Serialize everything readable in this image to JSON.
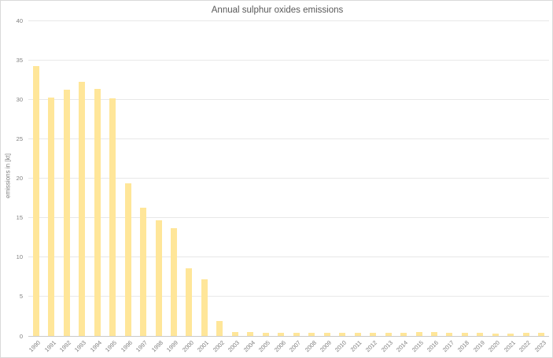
{
  "chart": {
    "title": "Annual sulphur oxides emissions",
    "y_axis_label": "emissions in [kt]"
  },
  "colors": {
    "bar_fill": "#FFE699",
    "gridline": "#E8E8E8",
    "axis_line": "#C9C9C9",
    "title_text": "#595959",
    "tick_text": "#7F7F7F",
    "frame_border": "#D9D9D9",
    "background": "#FFFFFF"
  },
  "chart_data": {
    "type": "bar",
    "title": "Annual sulphur oxides emissions",
    "xlabel": "",
    "ylabel": "emissions in [kt]",
    "categories": [
      "1990",
      "1991",
      "1992",
      "1993",
      "1994",
      "1995",
      "1996",
      "1997",
      "1998",
      "1999",
      "2000",
      "2001",
      "2002",
      "2003",
      "2004",
      "2005",
      "2006",
      "2007",
      "2008",
      "2009",
      "2010",
      "2011",
      "2012",
      "2013",
      "2014",
      "2015",
      "2016",
      "2017",
      "2018",
      "2019",
      "2020",
      "2021",
      "2022",
      "2023"
    ],
    "values": [
      34.2,
      30.2,
      31.2,
      32.2,
      31.3,
      30.1,
      19.4,
      16.3,
      14.7,
      13.7,
      8.6,
      7.2,
      1.9,
      0.5,
      0.5,
      0.4,
      0.4,
      0.4,
      0.4,
      0.4,
      0.4,
      0.4,
      0.4,
      0.4,
      0.4,
      0.5,
      0.5,
      0.4,
      0.4,
      0.4,
      0.3,
      0.3,
      0.4,
      0.4
    ],
    "ylim": [
      0,
      40
    ],
    "ytick_step": 5,
    "grid": true,
    "legend_position": "none",
    "x_label_rotation_deg": 45
  }
}
